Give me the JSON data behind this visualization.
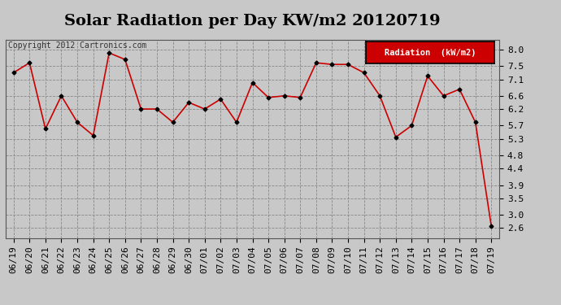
{
  "title": "Solar Radiation per Day KW/m2 20120719",
  "copyright": "Copyright 2012 Cartronics.com",
  "legend_label": "Radiation  (kW/m2)",
  "dates": [
    "06/19",
    "06/20",
    "06/21",
    "06/22",
    "06/23",
    "06/24",
    "06/25",
    "06/26",
    "06/27",
    "06/28",
    "06/29",
    "06/30",
    "07/01",
    "07/02",
    "07/03",
    "07/04",
    "07/05",
    "07/06",
    "07/07",
    "07/08",
    "07/09",
    "07/10",
    "07/11",
    "07/12",
    "07/13",
    "07/14",
    "07/15",
    "07/16",
    "07/17",
    "07/18",
    "07/19"
  ],
  "values": [
    7.3,
    7.6,
    5.6,
    6.6,
    5.8,
    5.4,
    7.9,
    7.7,
    6.2,
    6.2,
    5.8,
    6.4,
    6.2,
    6.5,
    5.8,
    7.0,
    6.55,
    6.6,
    6.55,
    7.6,
    7.55,
    7.55,
    7.3,
    6.6,
    5.35,
    5.7,
    7.2,
    6.6,
    6.8,
    5.8,
    2.65
  ],
  "line_color": "#cc0000",
  "marker_color": "#000000",
  "background_color": "#c8c8c8",
  "plot_bg_color": "#c8c8c8",
  "grid_color": "#888888",
  "yticks": [
    2.6,
    3.0,
    3.5,
    3.9,
    4.4,
    4.8,
    5.3,
    5.7,
    6.2,
    6.6,
    7.1,
    7.5,
    8.0
  ],
  "ylim": [
    2.3,
    8.3
  ],
  "legend_bg": "#cc0000",
  "legend_text_color": "#ffffff",
  "title_fontsize": 14,
  "tick_fontsize": 8,
  "copyright_fontsize": 7
}
